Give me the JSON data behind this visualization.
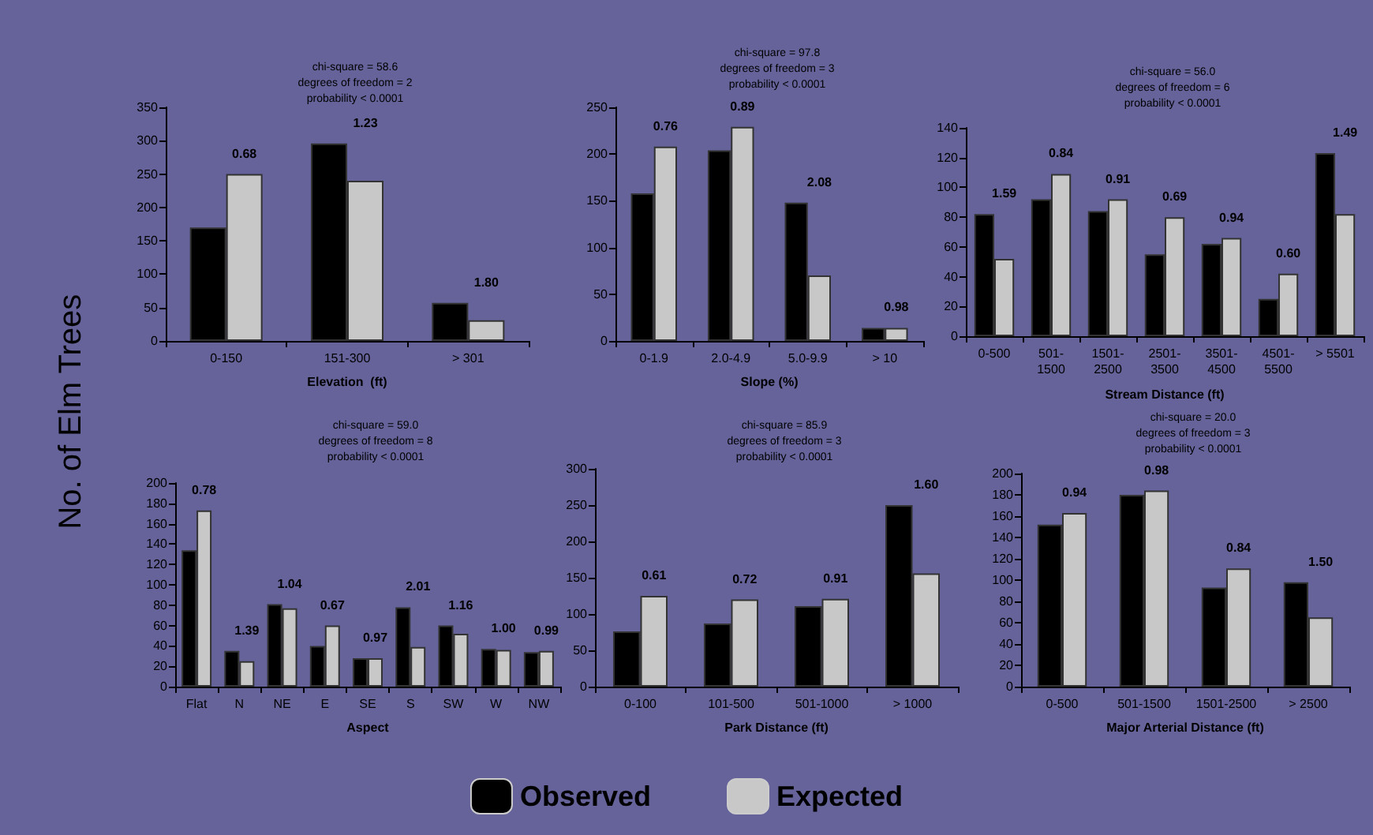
{
  "chart_data": [
    {
      "type": "bar",
      "title": "chi-square = 58.6\ndegrees of freedom = 2\nprobability < 0.0001",
      "xlabel": "Elevation  (ft)",
      "ylabel": "No. of Elm Trees",
      "categories": [
        "0-150",
        "151-300",
        "> 301"
      ],
      "series": [
        {
          "name": "Observed",
          "color": "#000000",
          "values": [
            170,
            296,
            57
          ]
        },
        {
          "name": "Expected",
          "color": "#c8c8c8",
          "values": [
            250,
            240,
            31
          ]
        }
      ],
      "ylim": [
        0,
        350
      ],
      "yticks": [
        0,
        50,
        100,
        150,
        200,
        250,
        300,
        350
      ],
      "grid": false,
      "legend": "bottom",
      "annotations": [
        {
          "text": "0.68",
          "x": "0-150",
          "y": 250
        },
        {
          "text": "1.23",
          "x": "151-300",
          "y": 296
        },
        {
          "text": "1.80",
          "x": "> 301",
          "y": 57
        }
      ]
    },
    {
      "type": "bar",
      "title": "chi-square = 97.8\ndegrees of freedom = 3\nprobability < 0.0001",
      "xlabel": "Slope (%)",
      "categories": [
        "0-1.9",
        "2.0-4.9",
        "5.0-9.9",
        "> 10"
      ],
      "series": [
        {
          "color": "#000000",
          "values": [
            158,
            204,
            148,
            14
          ]
        },
        {
          "color": "#c8c8c8",
          "values": [
            208,
            229,
            70,
            14
          ]
        }
      ],
      "ylim": [
        0,
        250
      ],
      "yticks": [
        0,
        50,
        100,
        150,
        200,
        250
      ],
      "grid": false,
      "legend": false,
      "annotations": [
        {
          "text": "0.76",
          "x": "0-1.9",
          "y": 208
        },
        {
          "text": "0.89",
          "x": "2.0-4.9",
          "y": 229
        },
        {
          "text": "2.08",
          "x": "5.0-9.9",
          "y": 148
        },
        {
          "text": "0.98",
          "x": "> 10",
          "y": 14
        }
      ]
    },
    {
      "type": "bar",
      "title": "chi-square = 56.0\ndegrees of freedom = 6\nprobability < 0.0001",
      "xlabel": "Stream Distance (ft)",
      "categories": [
        "0-500",
        "501-\n1500",
        "1501-\n2500",
        "2501-\n3500",
        "3501-\n4500",
        "4501-\n5500",
        "> 5501"
      ],
      "series": [
        {
          "color": "#000000",
          "values": [
            82,
            92,
            84,
            55,
            62,
            25,
            123
          ]
        },
        {
          "color": "#c8c8c8",
          "values": [
            52,
            109,
            92,
            80,
            66,
            42,
            82
          ]
        }
      ],
      "ylim": [
        0,
        140
      ],
      "yticks": [
        0,
        20,
        40,
        60,
        80,
        100,
        120,
        140
      ],
      "grid": false,
      "legend": false,
      "annotations": [
        {
          "text": "1.59",
          "x": "0-500",
          "y": 82
        },
        {
          "text": "0.84",
          "x": "501-\n1500",
          "y": 109
        },
        {
          "text": "0.91",
          "x": "1501-\n2500",
          "y": 92
        },
        {
          "text": "0.69",
          "x": "2501-\n3500",
          "y": 80
        },
        {
          "text": "0.94",
          "x": "3501-\n4500",
          "y": 66
        },
        {
          "text": "0.60",
          "x": "4501-\n5500",
          "y": 42
        },
        {
          "text": "1.49",
          "x": "> 5501",
          "y": 123
        }
      ]
    },
    {
      "type": "bar",
      "title": "chi-square = 59.0\ndegrees of freedom = 8\nprobability < 0.0001",
      "xlabel": "Aspect",
      "categories": [
        "Flat",
        "N",
        "NE",
        "E",
        "SE",
        "S",
        "SW",
        "W",
        "NW"
      ],
      "series": [
        {
          "color": "#000000",
          "values": [
            134,
            35,
            81,
            40,
            28,
            78,
            60,
            37,
            34
          ]
        },
        {
          "color": "#c8c8c8",
          "values": [
            173,
            25,
            77,
            60,
            28,
            39,
            52,
            36,
            35
          ]
        }
      ],
      "ylim": [
        0,
        200
      ],
      "yticks": [
        0,
        20,
        40,
        60,
        80,
        100,
        120,
        140,
        160,
        180,
        200
      ],
      "grid": false,
      "legend": false,
      "annotations": [
        {
          "text": "0.78",
          "x": "Flat",
          "y": 173
        },
        {
          "text": "1.39",
          "x": "N",
          "y": 35
        },
        {
          "text": "1.04",
          "x": "NE",
          "y": 81
        },
        {
          "text": "0.67",
          "x": "E",
          "y": 60
        },
        {
          "text": "0.97",
          "x": "SE",
          "y": 28
        },
        {
          "text": "2.01",
          "x": "S",
          "y": 78
        },
        {
          "text": "1.16",
          "x": "SW",
          "y": 60
        },
        {
          "text": "1.00",
          "x": "W",
          "y": 37
        },
        {
          "text": "0.99",
          "x": "NW",
          "y": 35
        }
      ]
    },
    {
      "type": "bar",
      "title": "chi-square = 85.9\ndegrees of freedom = 3\nprobability < 0.0001",
      "xlabel": "Park Distance (ft)",
      "categories": [
        "0-100",
        "101-500",
        "501-1000",
        "> 1000"
      ],
      "series": [
        {
          "color": "#000000",
          "values": [
            76,
            87,
            111,
            250
          ]
        },
        {
          "color": "#c8c8c8",
          "values": [
            125,
            120,
            121,
            156
          ]
        }
      ],
      "ylim": [
        0,
        300
      ],
      "yticks": [
        0,
        50,
        100,
        150,
        200,
        250,
        300
      ],
      "grid": false,
      "legend": false,
      "annotations": [
        {
          "text": "0.61",
          "x": "0-100",
          "y": 125
        },
        {
          "text": "0.72",
          "x": "101-500",
          "y": 120
        },
        {
          "text": "0.91",
          "x": "501-1000",
          "y": 121
        },
        {
          "text": "1.60",
          "x": "> 1000",
          "y": 250
        }
      ]
    },
    {
      "type": "bar",
      "title": "chi-square = 20.0\ndegrees of freedom = 3\nprobability < 0.0001",
      "xlabel": "Major Arterial Distance (ft)",
      "categories": [
        "0-500",
        "501-1500",
        "1501-2500",
        "> 2500"
      ],
      "series": [
        {
          "color": "#000000",
          "values": [
            152,
            180,
            93,
            98
          ]
        },
        {
          "color": "#c8c8c8",
          "values": [
            163,
            184,
            111,
            65
          ]
        }
      ],
      "ylim": [
        0,
        200
      ],
      "yticks": [
        0,
        20,
        40,
        60,
        80,
        100,
        120,
        140,
        160,
        180,
        200
      ],
      "grid": false,
      "legend": false,
      "annotations": [
        {
          "text": "0.94",
          "x": "0-500",
          "y": 163
        },
        {
          "text": "0.98",
          "x": "501-1500",
          "y": 184
        },
        {
          "text": "0.84",
          "x": "1501-2500",
          "y": 111
        },
        {
          "text": "1.50",
          "x": "> 2500",
          "y": 98
        }
      ]
    }
  ]
}
